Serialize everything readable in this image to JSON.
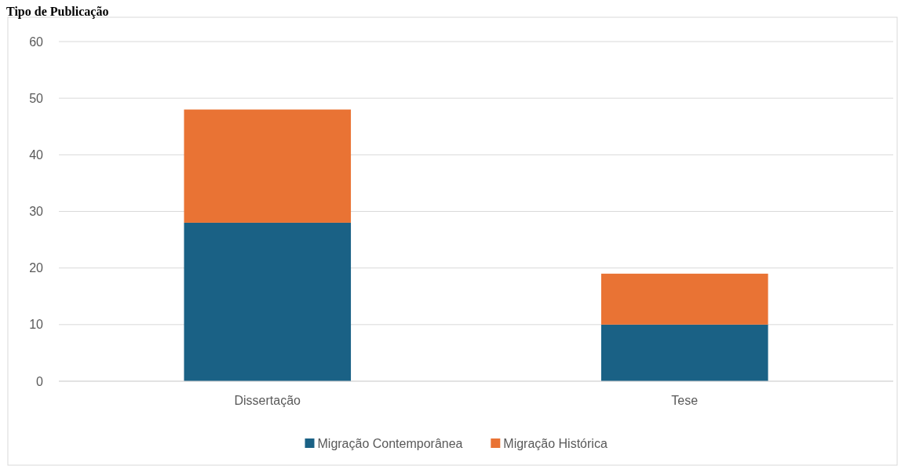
{
  "chart_data": {
    "type": "bar",
    "title": "Tipo de Publicação",
    "categories": [
      "Dissertação",
      "Tese"
    ],
    "stacked": true,
    "series": [
      {
        "name": "Migração Contemporânea",
        "color": "#1a6185",
        "values": [
          28,
          10
        ]
      },
      {
        "name": "Migração Histórica",
        "color": "#e97334",
        "values": [
          20,
          9
        ]
      }
    ],
    "ylim": [
      0,
      60
    ],
    "yticks": [
      0,
      10,
      20,
      30,
      40,
      50,
      60
    ],
    "grid": "y",
    "legend": "bottom"
  }
}
